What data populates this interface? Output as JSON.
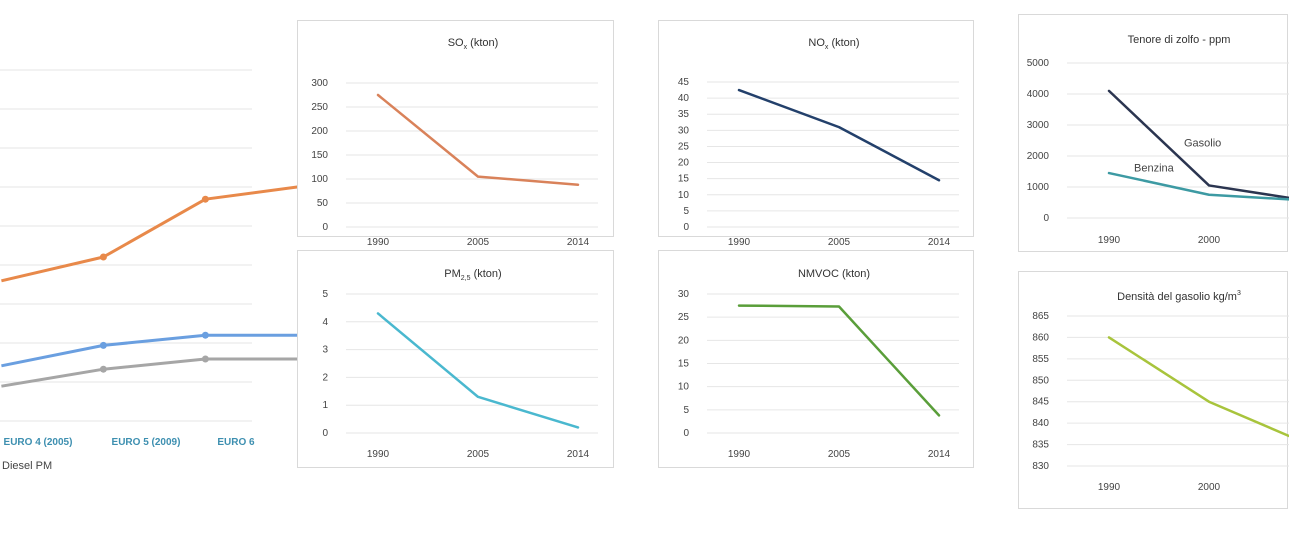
{
  "chart_data": [
    {
      "id": "euro",
      "type": "line",
      "categories": [
        "EURO 4 (2005)",
        "EURO 5 (2009)",
        "EURO 6"
      ],
      "x_shown_labels": [
        "EURO 4 (2005)",
        "EURO 5 (2009)",
        "EURO 6"
      ],
      "legend_text": "Diesel PM",
      "series": [
        {
          "color": "#e8894a",
          "points": [
            [
              0,
              0.62
            ],
            [
              1,
              0.55
            ],
            [
              2,
              0.38
            ],
            [
              3,
              0.34
            ]
          ]
        },
        {
          "color": "#6a9fe0",
          "points": [
            [
              0,
              0.87
            ],
            [
              1,
              0.81
            ],
            [
              2,
              0.78
            ],
            [
              3,
              0.78
            ]
          ]
        },
        {
          "color": "#a6a6a6",
          "points": [
            [
              0,
              0.93
            ],
            [
              1,
              0.88
            ],
            [
              2,
              0.85
            ],
            [
              3,
              0.85
            ]
          ]
        }
      ]
    },
    {
      "id": "sox",
      "type": "line",
      "title": "SO",
      "title_sub": "x",
      "title_suffix": " (kton)",
      "categories": [
        "1990",
        "2005",
        "2014"
      ],
      "yticks": [
        0,
        50,
        100,
        150,
        200,
        250,
        300
      ],
      "ylim": [
        0,
        300
      ],
      "series": [
        {
          "color": "#d9825a",
          "values": [
            275,
            105,
            88
          ]
        }
      ]
    },
    {
      "id": "nox",
      "type": "line",
      "title": "NO",
      "title_sub": "x",
      "title_suffix": " (kton)",
      "categories": [
        "1990",
        "2005",
        "2014"
      ],
      "yticks": [
        0,
        5,
        10,
        15,
        20,
        25,
        30,
        35,
        40,
        45
      ],
      "ylim": [
        0,
        45
      ],
      "series": [
        {
          "color": "#23406b",
          "values": [
            42.5,
            31,
            14.5
          ]
        }
      ]
    },
    {
      "id": "zolfo",
      "type": "line",
      "title": "Tenore di zolfo - ppm",
      "categories": [
        "1990",
        "2000"
      ],
      "x_positions": [
        1990,
        2000
      ],
      "xlim": [
        1987,
        2008
      ],
      "yticks": [
        0,
        1000,
        2000,
        3000,
        4000,
        5000
      ],
      "ytick_labels": [
        "0",
        "1000",
        "2000",
        "3000",
        "4000",
        "5000"
      ],
      "ylim": [
        0,
        5000
      ],
      "series": [
        {
          "name": "Gasolio",
          "color": "#2b3550",
          "x": [
            1990,
            2000,
            2008
          ],
          "values": [
            4100,
            1050,
            650
          ]
        },
        {
          "name": "Benzina",
          "color": "#3d9aa3",
          "x": [
            1990,
            2000,
            2008
          ],
          "values": [
            1450,
            750,
            600
          ]
        }
      ]
    },
    {
      "id": "pm",
      "type": "line",
      "title": "PM",
      "title_sub": "2,5",
      "title_suffix": " (kton)",
      "categories": [
        "1990",
        "2005",
        "2014"
      ],
      "yticks": [
        0,
        1,
        2,
        3,
        4,
        5
      ],
      "ylim": [
        0,
        5
      ],
      "series": [
        {
          "color": "#4ab8cf",
          "values": [
            4.3,
            1.3,
            0.2
          ]
        }
      ]
    },
    {
      "id": "nmvoc",
      "type": "line",
      "title": "NMVOC (kton)",
      "categories": [
        "1990",
        "2005",
        "2014"
      ],
      "yticks": [
        0,
        5,
        10,
        15,
        20,
        25,
        30
      ],
      "ylim": [
        0,
        30
      ],
      "series": [
        {
          "color": "#5a9e3a",
          "values": [
            27.5,
            27.3,
            3.8
          ]
        }
      ]
    },
    {
      "id": "densita",
      "type": "line",
      "title": "Densità del gasolio kg/m",
      "title_sup": "3",
      "categories": [
        "1990",
        "2000"
      ],
      "x_positions": [
        1990,
        2000
      ],
      "xlim": [
        1987,
        2008
      ],
      "yticks": [
        830,
        835,
        840,
        845,
        850,
        855,
        860,
        865
      ],
      "ylim": [
        830,
        865
      ],
      "series": [
        {
          "color": "#a8c43c",
          "x": [
            1990,
            2000,
            2008
          ],
          "values": [
            860,
            845,
            837
          ]
        }
      ]
    }
  ]
}
